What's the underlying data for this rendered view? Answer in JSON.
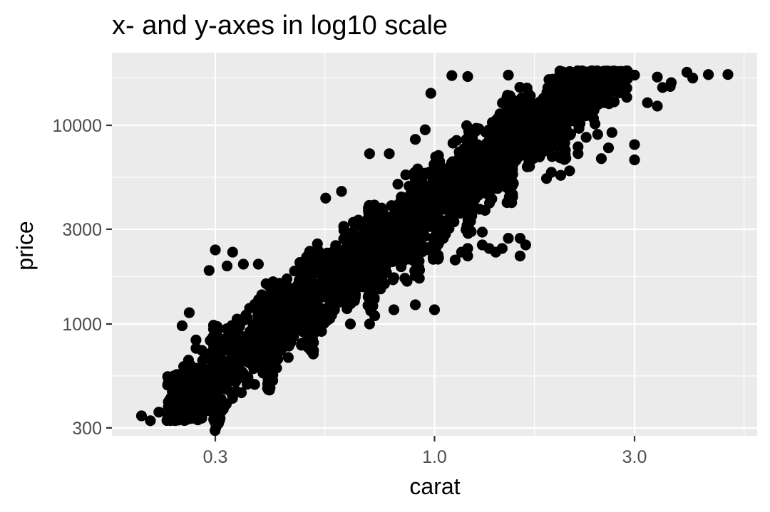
{
  "chart_data": {
    "type": "scatter",
    "title": "x- and y-axes in log10 scale",
    "xlabel": "carat",
    "ylabel": "price",
    "x_scale": "log10",
    "y_scale": "log10",
    "xlim": [
      0.2,
      5.01
    ],
    "ylim": [
      326,
      18823
    ],
    "x_ticks": [
      0.3,
      1.0,
      3.0
    ],
    "x_tick_labels": [
      "0.3",
      "1.0",
      "3.0"
    ],
    "y_ticks": [
      300,
      1000,
      3000,
      10000
    ],
    "y_tick_labels": [
      "300",
      "1000",
      "3000",
      "10000"
    ],
    "grid": true,
    "background": "#ebebeb",
    "point_color": "#000000",
    "band": {
      "slope": 1.65,
      "intercept_log10_price": 3.6,
      "upper_log10_offset": 0.24,
      "lower_log10_offset": -0.22,
      "price_cap": 18823,
      "density_note": "dense cloud along log(price) ~ 1.65 log(carat)"
    },
    "points": [
      [
        0.2,
        345
      ],
      [
        0.21,
        326
      ],
      [
        0.22,
        360
      ],
      [
        0.23,
        327
      ],
      [
        0.24,
        334
      ],
      [
        0.26,
        1140
      ],
      [
        0.25,
        980
      ],
      [
        0.3,
        2360
      ],
      [
        0.33,
        2300
      ],
      [
        0.32,
        1960
      ],
      [
        0.35,
        2000
      ],
      [
        0.38,
        2000
      ],
      [
        0.29,
        1860
      ],
      [
        0.55,
        4300
      ],
      [
        0.6,
        4650
      ],
      [
        0.7,
        7200
      ],
      [
        0.78,
        7200
      ],
      [
        0.9,
        8500
      ],
      [
        0.98,
        14500
      ],
      [
        0.95,
        9500
      ],
      [
        0.55,
        1100
      ],
      [
        0.63,
        1000
      ],
      [
        0.7,
        1000
      ],
      [
        0.72,
        1100
      ],
      [
        0.8,
        1180
      ],
      [
        0.9,
        1250
      ],
      [
        1.0,
        1180
      ],
      [
        0.48,
        950
      ],
      [
        0.5,
        900
      ],
      [
        0.45,
        950
      ],
      [
        0.42,
        720
      ],
      [
        0.42,
        600
      ],
      [
        0.4,
        500
      ],
      [
        0.33,
        550
      ],
      [
        0.3,
        600
      ],
      [
        0.28,
        500
      ],
      [
        0.26,
        480
      ],
      [
        0.25,
        440
      ],
      [
        0.24,
        390
      ],
      [
        1.1,
        17800
      ],
      [
        1.2,
        17600
      ],
      [
        1.5,
        17900
      ],
      [
        2.0,
        18000
      ],
      [
        2.5,
        18100
      ],
      [
        2.8,
        18200
      ],
      [
        3.0,
        17900
      ],
      [
        3.4,
        17500
      ],
      [
        3.5,
        15500
      ],
      [
        3.67,
        16400
      ],
      [
        3.65,
        15700
      ],
      [
        4.0,
        18500
      ],
      [
        4.13,
        17300
      ],
      [
        4.5,
        18000
      ],
      [
        5.01,
        18018
      ],
      [
        3.22,
        13000
      ],
      [
        3.4,
        12500
      ],
      [
        3.0,
        8000
      ],
      [
        3.0,
        6700
      ],
      [
        2.5,
        6800
      ],
      [
        2.2,
        7200
      ],
      [
        1.6,
        2200
      ],
      [
        1.65,
        2500
      ],
      [
        1.6,
        2700
      ],
      [
        1.3,
        2500
      ],
      [
        1.2,
        2400
      ],
      [
        1.2,
        2200
      ],
      [
        1.16,
        2300
      ],
      [
        1.4,
        2300
      ],
      [
        1.45,
        2400
      ],
      [
        1.5,
        2700
      ],
      [
        1.35,
        2400
      ],
      [
        1.3,
        2900
      ],
      [
        1.12,
        2100
      ],
      [
        1.05,
        2700
      ],
      [
        0.92,
        1700
      ],
      [
        0.9,
        1750
      ],
      [
        0.85,
        1700
      ],
      [
        0.86,
        1640
      ],
      [
        1.9,
        5800
      ],
      [
        2.0,
        5600
      ],
      [
        2.1,
        5900
      ],
      [
        1.85,
        5400
      ],
      [
        2.6,
        7700
      ],
      [
        2.65,
        9200
      ],
      [
        2.45,
        9000
      ],
      [
        2.3,
        8700
      ],
      [
        2.2,
        7800
      ]
    ]
  }
}
